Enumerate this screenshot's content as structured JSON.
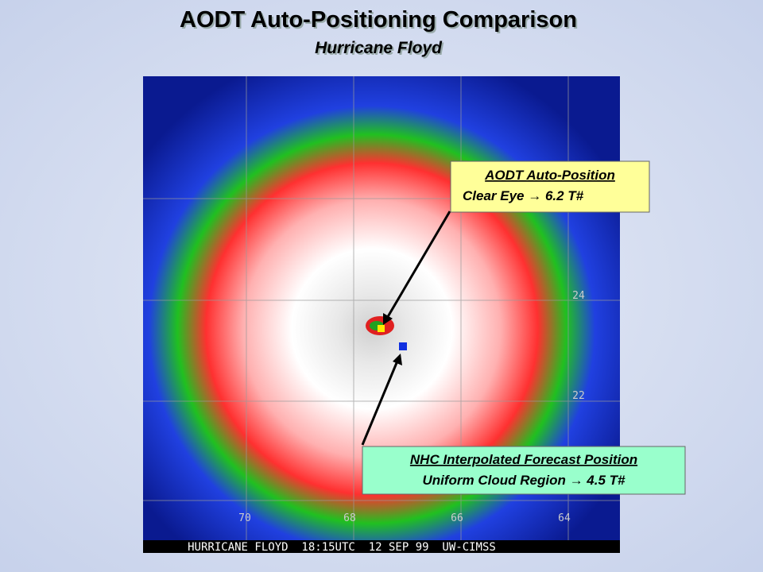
{
  "header": {
    "title": "AODT Auto-Positioning Comparison",
    "subtitle": "Hurricane Floyd"
  },
  "image": {
    "caption": "HURRICANE FLOYD  18:15UTC  12 SEP 99  UW-CIMSS",
    "longitude_labels": [
      "70",
      "68",
      "66",
      "64"
    ],
    "latitude_labels": [
      "24",
      "22"
    ]
  },
  "callouts": [
    {
      "title": "AODT Auto-Position",
      "text": "Clear Eye → 6.2 T#"
    },
    {
      "title": "NHC Interpolated Forecast Position",
      "text": "Uniform Cloud Region → 4.5 T#"
    }
  ]
}
